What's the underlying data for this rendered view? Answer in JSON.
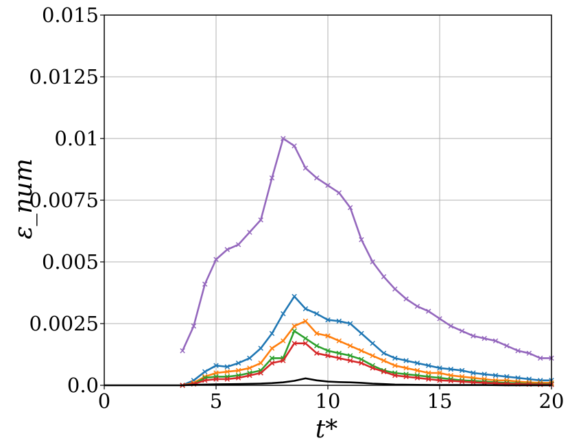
{
  "chart_data": {
    "type": "line",
    "title": "",
    "xlabel": "t*",
    "ylabel": "ε_num",
    "xlim": [
      0,
      20
    ],
    "ylim": [
      0,
      0.015
    ],
    "grid": true,
    "xticks": [
      0,
      5,
      10,
      15,
      20
    ],
    "xtick_labels": [
      "0",
      "5",
      "10",
      "15",
      "20"
    ],
    "yticks": [
      0,
      0.0025,
      0.005,
      0.0075,
      0.01,
      0.0125,
      0.015
    ],
    "ytick_labels": [
      "0.0",
      "0.0025",
      "0.005",
      "0.0075",
      "0.01",
      "0.0125",
      "0.015"
    ],
    "series": [
      {
        "color": "#9467bd",
        "marker": "x",
        "x": [
          3.5,
          4,
          4.5,
          5,
          5.5,
          6,
          6.5,
          7,
          7.5,
          8,
          8.5,
          9,
          9.5,
          10,
          10.5,
          11,
          11.5,
          12,
          12.5,
          13,
          13.5,
          14,
          14.5,
          15,
          15.5,
          16,
          16.5,
          17,
          17.5,
          18,
          18.5,
          19,
          19.5,
          20
        ],
        "y": [
          0.0014,
          0.0024,
          0.0041,
          0.0051,
          0.0055,
          0.0057,
          0.0062,
          0.0067,
          0.0084,
          0.01,
          0.0097,
          0.0088,
          0.0084,
          0.0081,
          0.0078,
          0.0072,
          0.0059,
          0.005,
          0.0044,
          0.0039,
          0.0035,
          0.0032,
          0.003,
          0.0027,
          0.0024,
          0.0022,
          0.002,
          0.0019,
          0.0018,
          0.0016,
          0.0014,
          0.0013,
          0.0011,
          0.0011
        ]
      },
      {
        "color": "#1f77b4",
        "marker": "x",
        "x": [
          3.5,
          4,
          4.5,
          5,
          5.5,
          6,
          6.5,
          7,
          7.5,
          8,
          8.5,
          9,
          9.5,
          10,
          10.5,
          11,
          11.5,
          12,
          12.5,
          13,
          13.5,
          14,
          14.5,
          15,
          15.5,
          16,
          16.5,
          17,
          17.5,
          18,
          18.5,
          19,
          19.5,
          20
        ],
        "y": [
          0.0,
          0.0002,
          0.00055,
          0.0008,
          0.00075,
          0.0009,
          0.0011,
          0.0015,
          0.0021,
          0.0029,
          0.0036,
          0.0031,
          0.0029,
          0.00265,
          0.0026,
          0.0025,
          0.0021,
          0.0017,
          0.0013,
          0.0011,
          0.001,
          0.0009,
          0.0008,
          0.0007,
          0.00065,
          0.0006,
          0.0005,
          0.00045,
          0.0004,
          0.00035,
          0.0003,
          0.00025,
          0.0002,
          0.0002
        ]
      },
      {
        "color": "#ff7f0e",
        "marker": "x",
        "x": [
          3.5,
          4,
          4.5,
          5,
          5.5,
          6,
          6.5,
          7,
          7.5,
          8,
          8.5,
          9,
          9.5,
          10,
          10.5,
          11,
          11.5,
          12,
          12.5,
          13,
          13.5,
          14,
          14.5,
          15,
          15.5,
          16,
          16.5,
          17,
          17.5,
          18,
          18.5,
          19,
          19.5,
          20
        ],
        "y": [
          0.0,
          0.0001,
          0.00035,
          0.0005,
          0.00055,
          0.0006,
          0.0007,
          0.0009,
          0.0015,
          0.0018,
          0.0024,
          0.0026,
          0.0021,
          0.002,
          0.0018,
          0.0016,
          0.0014,
          0.0012,
          0.001,
          0.0008,
          0.0007,
          0.0006,
          0.0005,
          0.0005,
          0.0004,
          0.00035,
          0.0003,
          0.00025,
          0.0002,
          0.0002,
          0.00015,
          0.00012,
          0.0001,
          0.0001
        ]
      },
      {
        "color": "#2ca02c",
        "marker": "x",
        "x": [
          3.5,
          4,
          4.5,
          5,
          5.5,
          6,
          6.5,
          7,
          7.5,
          8,
          8.5,
          9,
          9.5,
          10,
          10.5,
          11,
          11.5,
          12,
          12.5,
          13,
          13.5,
          14,
          14.5,
          15,
          15.5,
          16,
          16.5,
          17,
          17.5,
          18,
          18.5,
          19,
          19.5,
          20
        ],
        "y": [
          0.0,
          5e-05,
          0.0003,
          0.00035,
          0.00035,
          0.0004,
          0.0005,
          0.0006,
          0.0011,
          0.0011,
          0.0022,
          0.0019,
          0.0016,
          0.0014,
          0.0013,
          0.0012,
          0.00105,
          0.0008,
          0.0006,
          0.0005,
          0.00045,
          0.0004,
          0.00035,
          0.0003,
          0.00025,
          0.0002,
          0.00018,
          0.00015,
          0.00012,
          0.0001,
          8e-05,
          6e-05,
          5e-05,
          5e-05
        ]
      },
      {
        "color": "#d62728",
        "marker": "x",
        "x": [
          3.5,
          4,
          4.5,
          5,
          5.5,
          6,
          6.5,
          7,
          7.5,
          8,
          8.5,
          9,
          9.5,
          10,
          10.5,
          11,
          11.5,
          12,
          12.5,
          13,
          13.5,
          14,
          14.5,
          15,
          15.5,
          16,
          16.5,
          17,
          17.5,
          18,
          18.5,
          19,
          19.5,
          20
        ],
        "y": [
          0.0,
          5e-05,
          0.0002,
          0.00025,
          0.00025,
          0.0003,
          0.0004,
          0.0005,
          0.0009,
          0.001,
          0.0017,
          0.0017,
          0.0013,
          0.0012,
          0.0011,
          0.001,
          0.0009,
          0.0007,
          0.00055,
          0.0004,
          0.00035,
          0.0003,
          0.00025,
          0.0002,
          0.00018,
          0.00015,
          0.00012,
          0.0001,
          8e-05,
          6e-05,
          5e-05,
          4e-05,
          3e-05,
          3e-05
        ]
      },
      {
        "color": "#000000",
        "marker": "none",
        "x": [
          0,
          3.5,
          4,
          5,
          6,
          7,
          7.5,
          8,
          8.5,
          9,
          9.5,
          10,
          10.5,
          11,
          11.5,
          12,
          12.5,
          13,
          14,
          15,
          16,
          17,
          18,
          19,
          20
        ],
        "y": [
          0.0,
          0.0,
          2e-05,
          4e-05,
          5e-05,
          7e-05,
          9e-05,
          0.00012,
          0.00018,
          0.00028,
          0.0002,
          0.00015,
          0.00013,
          0.00012,
          0.0001,
          7e-05,
          5e-05,
          3e-05,
          2e-05,
          1e-05,
          1e-05,
          1e-05,
          0.0,
          0.0,
          0.0
        ]
      }
    ]
  }
}
